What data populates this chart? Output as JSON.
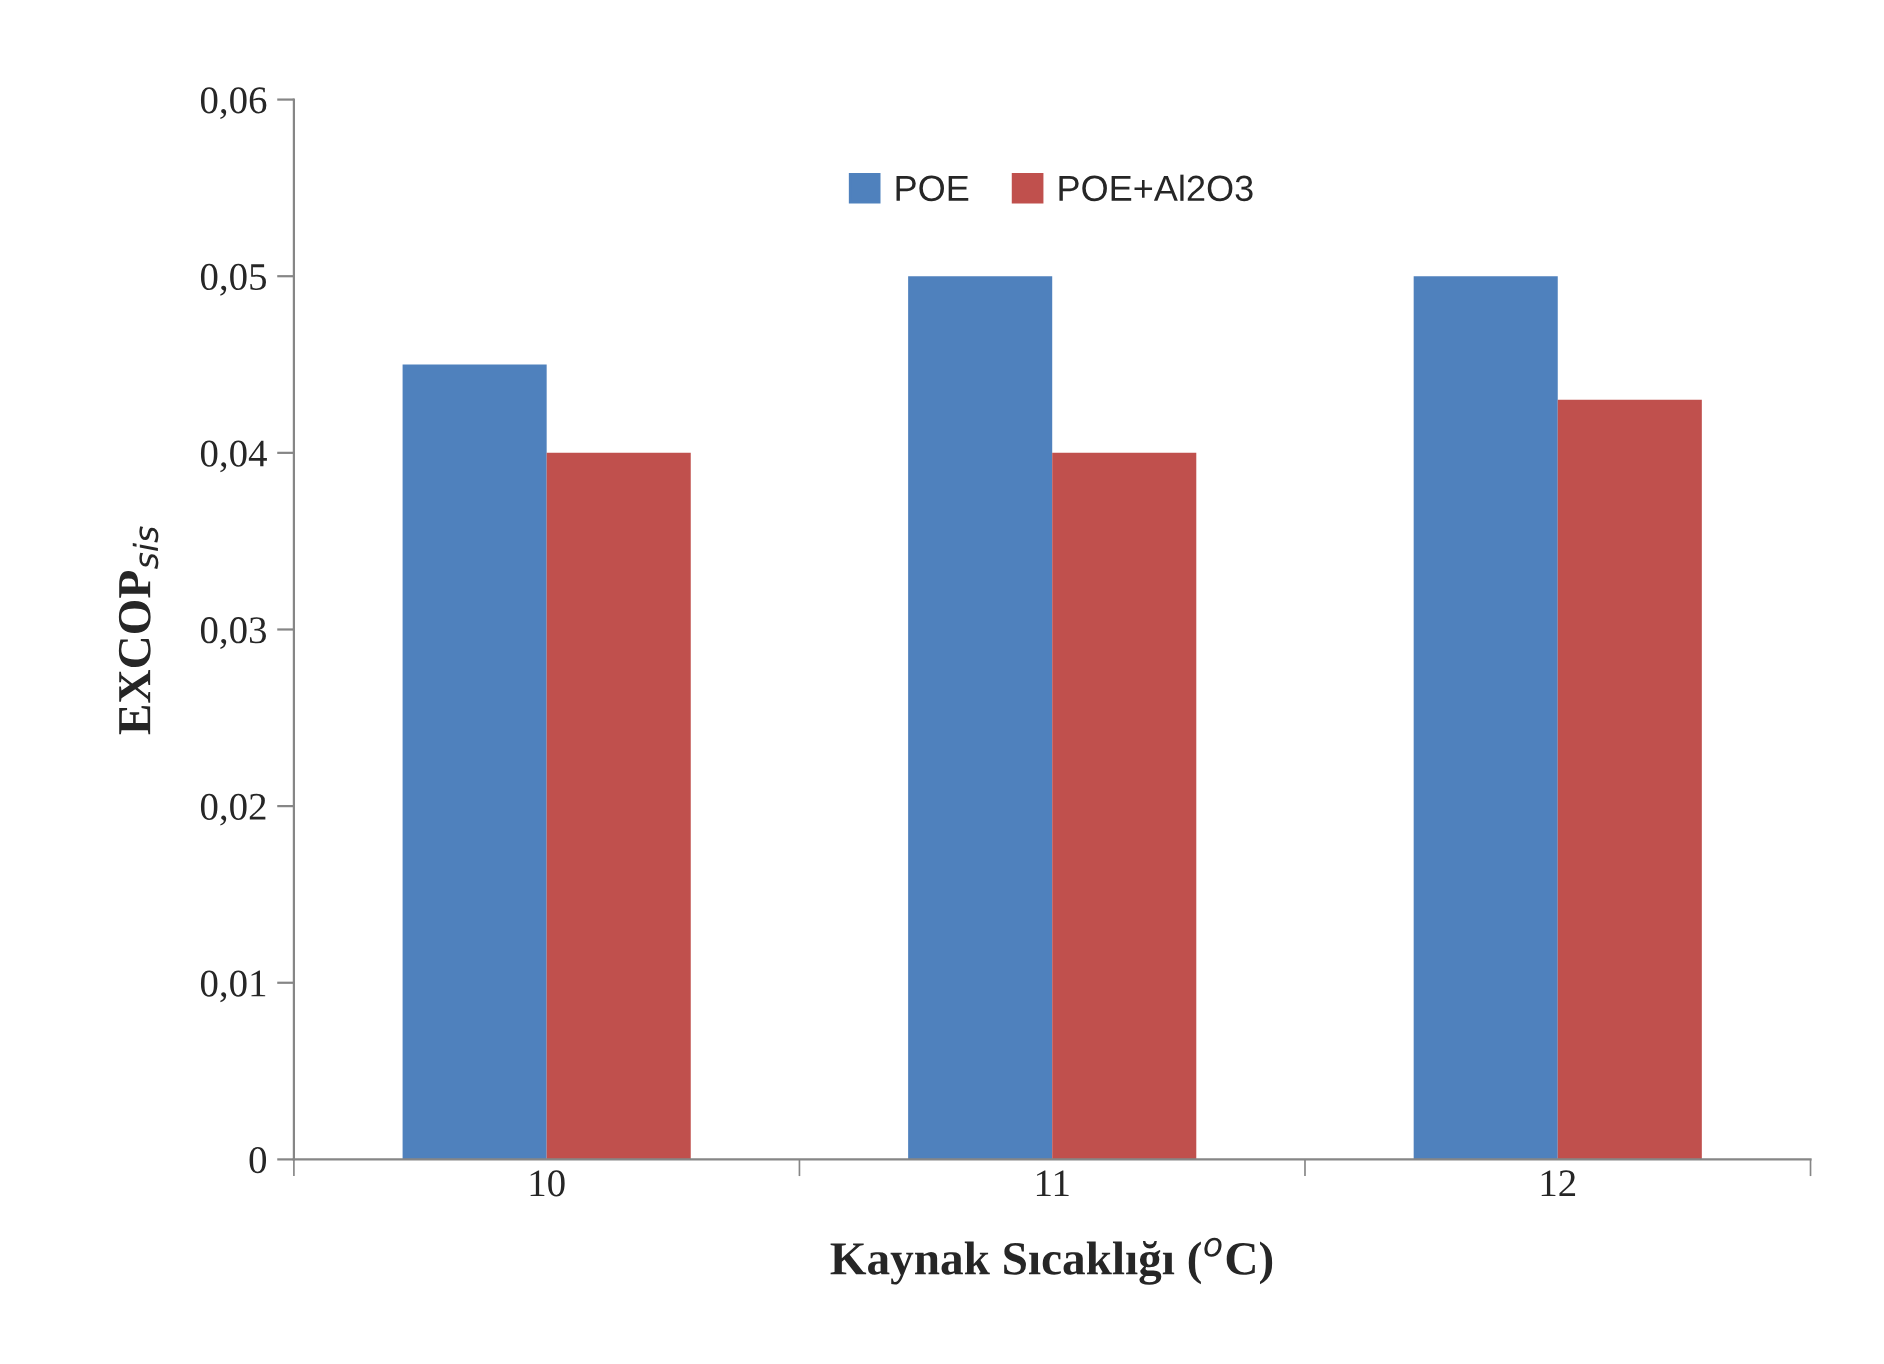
{
  "chart_data": {
    "type": "bar",
    "xlabel": "Kaynak Sıcaklığı ($^{o}$C)",
    "ylabel": "EXCOP$_{sis}$",
    "categories": [
      "10",
      "11",
      "12"
    ],
    "series": [
      {
        "name": "POE",
        "color": "#4f81bd",
        "values": [
          0.045,
          0.05,
          0.05
        ]
      },
      {
        "name": "POE+Al2O3",
        "color": "#c0504d",
        "values": [
          0.04,
          0.04,
          0.043
        ]
      }
    ],
    "ylim": [
      0,
      0.06
    ],
    "yticks": [
      0,
      {
        "value": 0.01,
        "label": "0,01"
      },
      {
        "value": 0.02,
        "label": "0,02"
      },
      {
        "value": 0.03,
        "label": "0,03"
      },
      {
        "value": 0.04,
        "label": "0,04"
      },
      {
        "value": 0.05,
        "label": "0,05"
      },
      {
        "value": 0.06,
        "label": "0,06"
      }
    ],
    "grid": false,
    "legend": "top"
  }
}
